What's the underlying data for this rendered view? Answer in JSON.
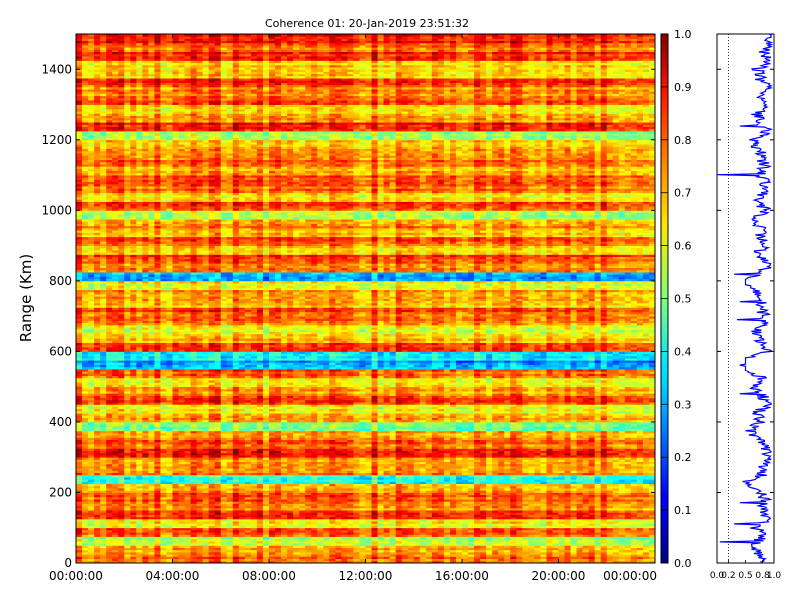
{
  "chart_data": [
    {
      "type": "heatmap",
      "title": "Coherence 01: 20-Jan-2019 23:51:32",
      "xlabel": "",
      "ylabel": "Range (Km)",
      "x_tick_labels": [
        "00:00:00",
        "04:00:00",
        "08:00:00",
        "12:00:00",
        "16:00:00",
        "20:00:00",
        "00:00:00"
      ],
      "x_range_hours": [
        0,
        24
      ],
      "ylim": [
        0,
        1500
      ],
      "y_ticks": [
        0,
        200,
        400,
        600,
        800,
        1000,
        1200,
        1400
      ],
      "colorbar": {
        "colormap": "jet",
        "range": [
          0,
          1
        ],
        "tick_labels": [
          "0.0",
          "0.1",
          "0.2",
          "0.3",
          "0.4",
          "0.5",
          "0.6",
          "0.7",
          "0.8",
          "0.9",
          "1.0"
        ]
      },
      "range_gates": {
        "bins_km": [
          0,
          25,
          50,
          75,
          100,
          125,
          150,
          175,
          200,
          225,
          250,
          275,
          300,
          325,
          350,
          375,
          400,
          425,
          450,
          475,
          500,
          525,
          550,
          575,
          600,
          625,
          650,
          675,
          700,
          725,
          750,
          775,
          800,
          825,
          850,
          875,
          900,
          925,
          950,
          975,
          1000,
          1025,
          1050,
          1075,
          1100,
          1125,
          1150,
          1175,
          1200,
          1225,
          1250,
          1275,
          1300,
          1325,
          1350,
          1375,
          1400,
          1425,
          1450,
          1475
        ],
        "mean_coherence": [
          0.78,
          0.72,
          0.55,
          0.8,
          0.62,
          0.85,
          0.74,
          0.8,
          0.7,
          0.42,
          0.76,
          0.72,
          0.88,
          0.78,
          0.74,
          0.5,
          0.72,
          0.64,
          0.85,
          0.74,
          0.62,
          0.78,
          0.3,
          0.4,
          0.86,
          0.7,
          0.6,
          0.75,
          0.8,
          0.7,
          0.74,
          0.62,
          0.3,
          0.78,
          0.84,
          0.66,
          0.8,
          0.7,
          0.74,
          0.56,
          0.82,
          0.66,
          0.78,
          0.8,
          0.72,
          0.78,
          0.74,
          0.68,
          0.55,
          0.86,
          0.72,
          0.64,
          0.8,
          0.74,
          0.84,
          0.7,
          0.66,
          0.85,
          0.78,
          0.88
        ]
      }
    },
    {
      "type": "line",
      "title": "",
      "xlabel": "",
      "ylabel": "",
      "xlim": [
        0,
        1
      ],
      "ylim": [
        0,
        1500
      ],
      "x_tick_labels": [
        "0.0",
        "0.2",
        "0.5",
        "0.8",
        "1.0"
      ],
      "reference_line_x": 0.2,
      "series": [
        {
          "color": "#0000ff",
          "y_km": [
            0,
            25,
            50,
            75,
            100,
            125,
            150,
            175,
            200,
            225,
            250,
            275,
            300,
            325,
            350,
            375,
            400,
            425,
            450,
            475,
            500,
            525,
            550,
            575,
            600,
            625,
            650,
            675,
            700,
            725,
            750,
            775,
            800,
            825,
            850,
            875,
            900,
            925,
            950,
            975,
            1000,
            1025,
            1050,
            1075,
            1100,
            1125,
            1150,
            1175,
            1200,
            1225,
            1250,
            1275,
            1300,
            1325,
            1350,
            1375,
            1400,
            1425,
            1450,
            1475
          ],
          "x_profile": [
            0.78,
            0.72,
            0.55,
            0.8,
            0.62,
            0.85,
            0.74,
            0.8,
            0.7,
            0.42,
            0.76,
            0.72,
            0.88,
            0.78,
            0.74,
            0.5,
            0.72,
            0.64,
            0.85,
            0.74,
            0.62,
            0.78,
            0.3,
            0.4,
            0.86,
            0.7,
            0.6,
            0.75,
            0.8,
            0.7,
            0.74,
            0.62,
            0.3,
            0.78,
            0.84,
            0.66,
            0.8,
            0.7,
            0.74,
            0.56,
            0.82,
            0.66,
            0.78,
            0.8,
            0.72,
            0.78,
            0.74,
            0.68,
            0.55,
            0.86,
            0.72,
            0.64,
            0.8,
            0.74,
            0.84,
            0.7,
            0.66,
            0.85,
            0.78,
            0.88
          ],
          "spikes": [
            {
              "y_km": 60,
              "x": 0.05
            },
            {
              "y_km": 110,
              "x": 0.3
            },
            {
              "y_km": 170,
              "x": 0.4
            },
            {
              "y_km": 230,
              "x": 0.45
            },
            {
              "y_km": 480,
              "x": 0.4
            },
            {
              "y_km": 560,
              "x": 0.4
            },
            {
              "y_km": 690,
              "x": 0.35
            },
            {
              "y_km": 740,
              "x": 0.4
            },
            {
              "y_km": 820,
              "x": 0.3
            },
            {
              "y_km": 1100,
              "x": 0.0
            },
            {
              "y_km": 1240,
              "x": 0.4
            }
          ]
        }
      ]
    }
  ]
}
